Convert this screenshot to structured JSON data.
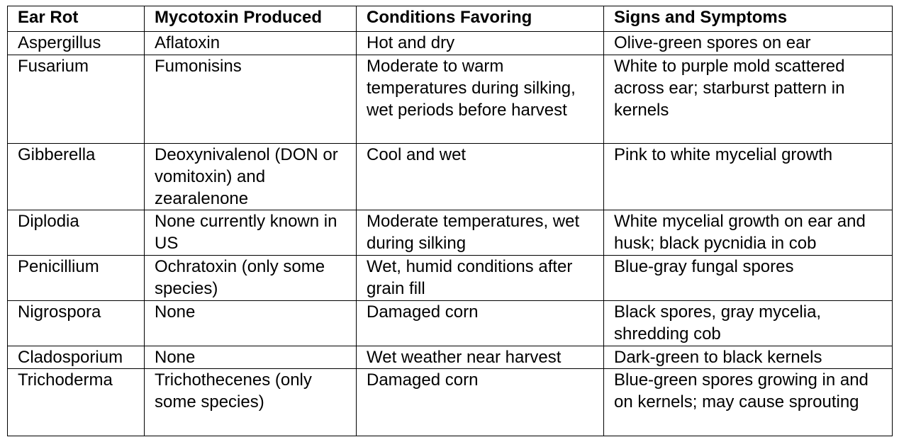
{
  "table": {
    "header": [
      "Ear Rot",
      "Mycotoxin Produced",
      "Conditions Favoring",
      "Signs and Symptoms"
    ],
    "rows": [
      [
        "Aspergillus",
        "Aflatoxin",
        "Hot and dry",
        "Olive-green spores on ear"
      ],
      [
        "Fusarium",
        "Fumonisins",
        "Moderate to warm temperatures during silking, wet periods before harvest",
        "White to purple mold scattered across ear; starburst pattern in kernels"
      ],
      [
        "Gibberella",
        "Deoxynivalenol (DON or vomitoxin) and zearalenone",
        "Cool and wet",
        "Pink to white mycelial growth"
      ],
      [
        "Diplodia",
        "None currently known in US",
        "Moderate temperatures, wet during silking",
        "White mycelial growth on ear and husk; black pycnidia in cob"
      ],
      [
        "Penicillium",
        "Ochratoxin (only some species)",
        "Wet, humid conditions after grain fill",
        "Blue-gray fungal spores"
      ],
      [
        "Nigrospora",
        "None",
        "Damaged corn",
        "Black spores, gray mycelia, shredding cob"
      ],
      [
        "Cladosporium",
        "None",
        "Wet weather near harvest",
        "Dark-green to black kernels"
      ],
      [
        "Trichoderma",
        "Trichothecenes (only some species)",
        "Damaged corn",
        "Blue-green spores growing in and on kernels; may cause sprouting"
      ]
    ]
  }
}
